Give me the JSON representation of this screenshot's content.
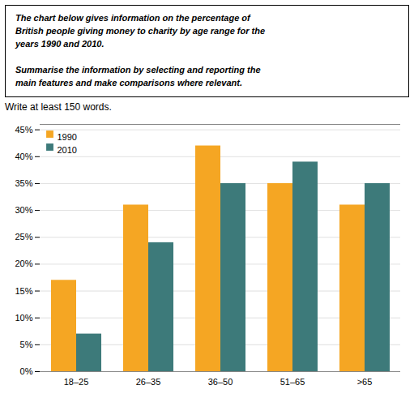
{
  "chart_data": {
    "type": "bar",
    "title": "The chart below gives information on the percentage of\nBritish people giving money to charity by age range for the\nyears 1990 and 2010.\n\nSummarise the information by selecting and reporting the\nmain features and make comparisons where relevant.",
    "subtitle": "Write at least 150 words.",
    "categories": [
      "18–25",
      "26–35",
      "36–50",
      "51–65",
      ">65"
    ],
    "series": [
      {
        "name": "1990",
        "color": "#F5A623",
        "values": [
          17,
          31,
          42,
          35,
          31
        ]
      },
      {
        "name": "2010",
        "color": "#3D7A7A",
        "values": [
          7,
          24,
          35,
          39,
          35
        ]
      }
    ],
    "ylim": [
      0,
      46
    ],
    "yticks": [
      {
        "value": 0,
        "label": "0%"
      },
      {
        "value": 5,
        "label": "5%"
      },
      {
        "value": 10,
        "label": "10%"
      },
      {
        "value": 15,
        "label": "15%"
      },
      {
        "value": 20,
        "label": "20%"
      },
      {
        "value": 25,
        "label": "25%"
      },
      {
        "value": 30,
        "label": "30%"
      },
      {
        "value": 35,
        "label": "35%"
      },
      {
        "value": 40,
        "label": "40%"
      },
      {
        "value": 45,
        "label": "45%"
      }
    ],
    "grid": true,
    "legend": "upper left"
  }
}
